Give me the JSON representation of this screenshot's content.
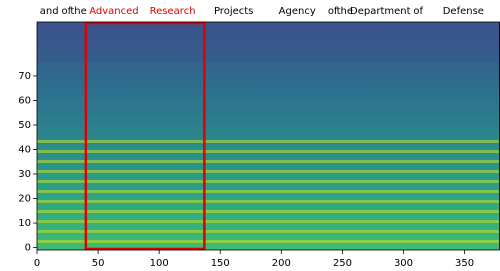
{
  "chart_data": {
    "type": "spectrogram",
    "xlim": [
      0,
      379
    ],
    "ylim": [
      -1,
      92
    ],
    "xticks": [
      0,
      50,
      100,
      150,
      200,
      250,
      300,
      350
    ],
    "yticks": [
      0,
      10,
      20,
      30,
      40,
      50,
      60,
      70
    ],
    "words": [
      {
        "text": "and",
        "x": 10,
        "color": "#000000"
      },
      {
        "text": "of",
        "x": 24,
        "color": "#000000"
      },
      {
        "text": "the",
        "x": 34,
        "color": "#000000"
      },
      {
        "text": "Advanced",
        "x": 63,
        "color": "#e00000"
      },
      {
        "text": "Research",
        "x": 111,
        "color": "#e00000"
      },
      {
        "text": "Projects",
        "x": 161,
        "color": "#000000"
      },
      {
        "text": "Agency",
        "x": 213,
        "color": "#000000"
      },
      {
        "text": "of",
        "x": 242,
        "color": "#000000"
      },
      {
        "text": "the",
        "x": 252,
        "color": "#000000"
      },
      {
        "text": "Department",
        "x": 281,
        "color": "#000000"
      },
      {
        "text": "of",
        "x": 312,
        "color": "#000000"
      },
      {
        "text": "Defense",
        "x": 349,
        "color": "#000000"
      }
    ],
    "highlight": {
      "x": [
        40,
        137
      ],
      "color": "#e00000"
    }
  }
}
